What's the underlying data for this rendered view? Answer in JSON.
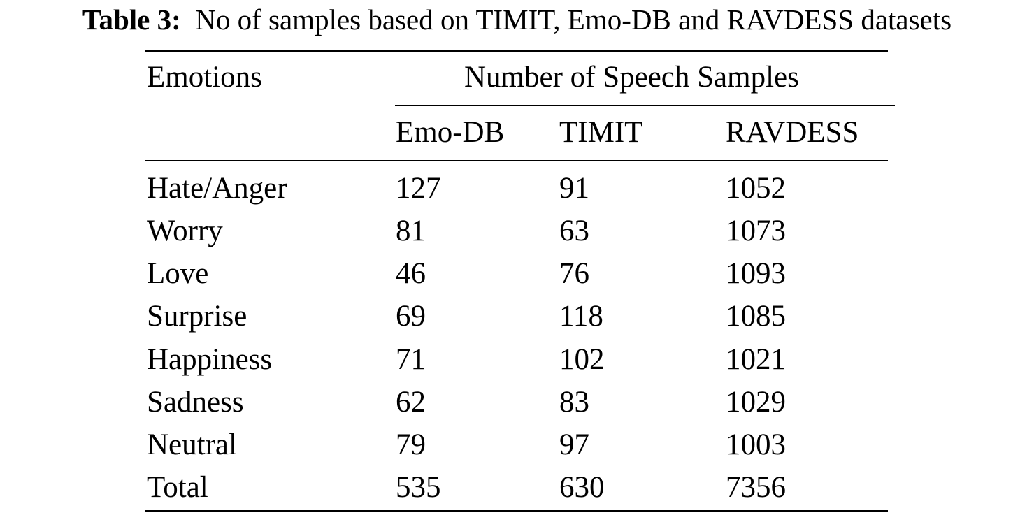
{
  "caption": {
    "label": "Table 3:",
    "text": "No of samples based on TIMIT, Emo-DB and RAVDESS datasets"
  },
  "table": {
    "row_header": "Emotions",
    "group_header": "Number of Speech Samples",
    "columns": [
      "Emo-DB",
      "TIMIT",
      "RAVDESS"
    ],
    "rows": [
      {
        "label": "Hate/Anger",
        "values": [
          "127",
          "91",
          "1052"
        ]
      },
      {
        "label": "Worry",
        "values": [
          "81",
          "63",
          "1073"
        ]
      },
      {
        "label": "Love",
        "values": [
          "46",
          "76",
          "1093"
        ]
      },
      {
        "label": "Surprise",
        "values": [
          "69",
          "118",
          "1085"
        ]
      },
      {
        "label": "Happiness",
        "values": [
          "71",
          "102",
          "1021"
        ]
      },
      {
        "label": "Sadness",
        "values": [
          "62",
          "83",
          "1029"
        ]
      },
      {
        "label": "Neutral",
        "values": [
          "79",
          "97",
          "1003"
        ]
      },
      {
        "label": "Total",
        "values": [
          "535",
          "630",
          "7356"
        ]
      }
    ]
  }
}
